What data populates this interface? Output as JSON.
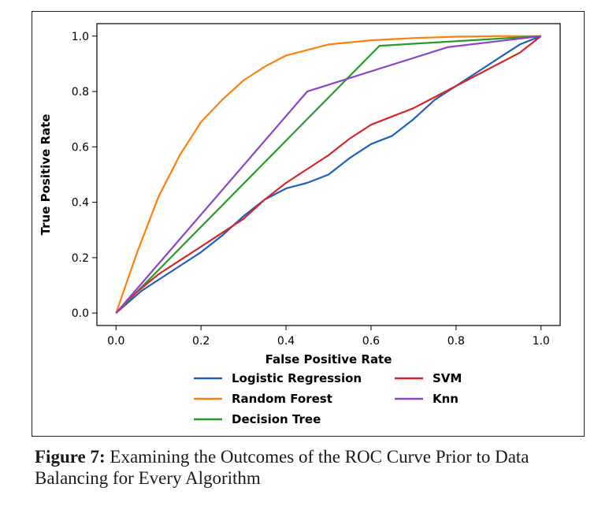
{
  "caption": {
    "label": "Figure 7:",
    "text": " Examining the Outcomes of the ROC Curve Prior to Data Balancing for Every Algorithm"
  },
  "chart_data": {
    "type": "line",
    "title": "",
    "xlabel": "False Positive Rate",
    "ylabel": "True Positive Rate",
    "xlim": [
      0,
      1
    ],
    "ylim": [
      0,
      1
    ],
    "xticks": [
      0.0,
      0.2,
      0.4,
      0.6,
      0.8,
      1.0
    ],
    "yticks": [
      0.0,
      0.2,
      0.4,
      0.6,
      0.8,
      1.0
    ],
    "xtick_labels": [
      "0.0",
      "0.2",
      "0.4",
      "0.6",
      "0.8",
      "1.0"
    ],
    "ytick_labels": [
      "0.0",
      "0.2",
      "0.4",
      "0.6",
      "0.8",
      "1.0"
    ],
    "grid": false,
    "legend_position": "below",
    "series": [
      {
        "name": "Logistic Regression",
        "color": "#1f5fbf",
        "x": [
          0,
          0.03,
          0.06,
          0.1,
          0.15,
          0.2,
          0.25,
          0.3,
          0.35,
          0.4,
          0.45,
          0.5,
          0.55,
          0.6,
          0.65,
          0.7,
          0.75,
          0.8,
          0.85,
          0.9,
          0.95,
          1.0
        ],
        "y": [
          0,
          0.04,
          0.08,
          0.12,
          0.17,
          0.22,
          0.28,
          0.35,
          0.41,
          0.45,
          0.47,
          0.5,
          0.56,
          0.61,
          0.64,
          0.7,
          0.77,
          0.82,
          0.87,
          0.92,
          0.97,
          1.0
        ]
      },
      {
        "name": "Random Forest",
        "color": "#ff7f0e",
        "x": [
          0,
          0.05,
          0.1,
          0.15,
          0.2,
          0.25,
          0.3,
          0.35,
          0.4,
          0.45,
          0.5,
          0.6,
          0.7,
          0.8,
          0.9,
          1.0
        ],
        "y": [
          0,
          0.22,
          0.42,
          0.57,
          0.69,
          0.77,
          0.84,
          0.89,
          0.93,
          0.95,
          0.97,
          0.985,
          0.993,
          0.998,
          1.0,
          1.0
        ]
      },
      {
        "name": "Decision Tree",
        "color": "#2a9a2a",
        "x": [
          0,
          0.62,
          1.0
        ],
        "y": [
          0,
          0.965,
          1.0
        ]
      },
      {
        "name": "SVM",
        "color": "#d62728",
        "x": [
          0,
          0.03,
          0.06,
          0.1,
          0.15,
          0.2,
          0.25,
          0.3,
          0.35,
          0.4,
          0.45,
          0.5,
          0.55,
          0.6,
          0.65,
          0.7,
          0.75,
          0.8,
          0.85,
          0.9,
          0.95,
          1.0
        ],
        "y": [
          0,
          0.05,
          0.09,
          0.14,
          0.19,
          0.24,
          0.29,
          0.34,
          0.41,
          0.47,
          0.52,
          0.57,
          0.63,
          0.68,
          0.71,
          0.74,
          0.78,
          0.82,
          0.86,
          0.9,
          0.94,
          1.0
        ]
      },
      {
        "name": "Knn",
        "color": "#8a44c8",
        "x": [
          0,
          0.45,
          0.78,
          1.0
        ],
        "y": [
          0,
          0.8,
          0.96,
          1.0
        ]
      }
    ]
  }
}
